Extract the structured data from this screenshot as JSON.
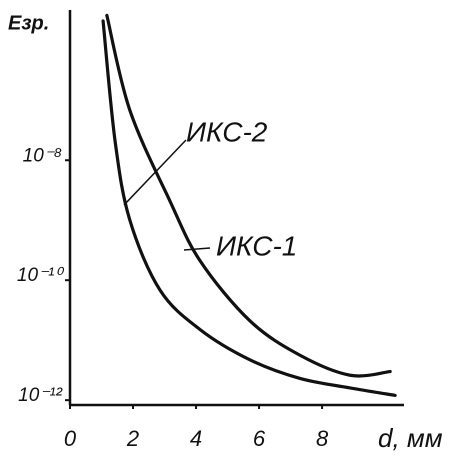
{
  "chart_data": {
    "type": "line",
    "ylabel": "Eзр.",
    "xlabel": "d, мм",
    "xlim": [
      0,
      10.6
    ],
    "xticks": [
      0,
      2,
      4,
      6,
      8
    ],
    "ylim": [
      8.3e-13,
      3.2e-06
    ],
    "log_y": true,
    "yticks": [
      {
        "value": 1e-08,
        "label": "10⁻⁸"
      },
      {
        "value": 1e-10,
        "label": "10⁻¹⁰"
      },
      {
        "value": 1e-12,
        "label": "10⁻¹²"
      }
    ],
    "series": [
      {
        "name": "ИКС-1",
        "color": "#111111",
        "x": [
          1.17,
          1.9,
          3.17,
          4.13,
          5.71,
          7.3,
          8.89,
          10.16
        ],
        "values": [
          2.6e-06,
          6.8e-08,
          2.1e-09,
          2.1e-10,
          2.1e-11,
          5.6e-12,
          2.6e-12,
          3e-12
        ]
      },
      {
        "name": "ИКС-2",
        "color": "#111111",
        "x": [
          1.05,
          1.43,
          1.9,
          2.86,
          4.13,
          5.71,
          7.3,
          8.89,
          10.32
        ],
        "values": [
          2.1e-06,
          2.1e-08,
          1e-09,
          6.8e-11,
          1.5e-11,
          4.7e-12,
          2.3e-12,
          1.6e-12,
          1.2e-12
        ]
      }
    ]
  }
}
